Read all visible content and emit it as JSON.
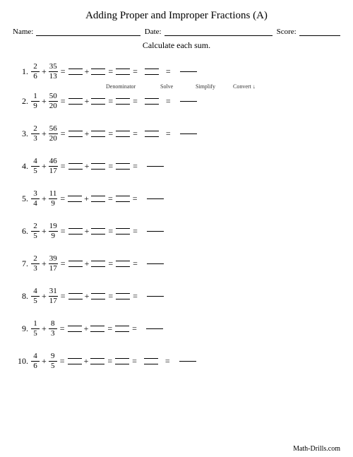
{
  "title": "Adding Proper and Improper Fractions (A)",
  "header": {
    "name_label": "Name:",
    "date_label": "Date:",
    "score_label": "Score:"
  },
  "instruction": "Calculate each sum.",
  "step_labels": {
    "denominator": "Denominator",
    "solve": "Solve",
    "simplify": "Simplify",
    "convert": "Convert ↓"
  },
  "problems": [
    {
      "num": "1.",
      "a_n": "2",
      "a_d": "6",
      "b_n": "35",
      "b_d": "13",
      "extra_steps": 2
    },
    {
      "num": "2.",
      "a_n": "1",
      "a_d": "9",
      "b_n": "50",
      "b_d": "20",
      "extra_steps": 2
    },
    {
      "num": "3.",
      "a_n": "2",
      "a_d": "3",
      "b_n": "56",
      "b_d": "20",
      "extra_steps": 2
    },
    {
      "num": "4.",
      "a_n": "4",
      "a_d": "5",
      "b_n": "46",
      "b_d": "17",
      "extra_steps": 1
    },
    {
      "num": "5.",
      "a_n": "3",
      "a_d": "4",
      "b_n": "11",
      "b_d": "9",
      "extra_steps": 1
    },
    {
      "num": "6.",
      "a_n": "2",
      "a_d": "5",
      "b_n": "19",
      "b_d": "9",
      "extra_steps": 1
    },
    {
      "num": "7.",
      "a_n": "2",
      "a_d": "3",
      "b_n": "39",
      "b_d": "17",
      "extra_steps": 1
    },
    {
      "num": "8.",
      "a_n": "4",
      "a_d": "5",
      "b_n": "31",
      "b_d": "17",
      "extra_steps": 1
    },
    {
      "num": "9.",
      "a_n": "1",
      "a_d": "5",
      "b_n": "8",
      "b_d": "3",
      "extra_steps": 1
    },
    {
      "num": "10.",
      "a_n": "4",
      "a_d": "6",
      "b_n": "9",
      "b_d": "5",
      "extra_steps": 2
    }
  ],
  "footer": "Math-Drills.com",
  "symbols": {
    "plus": "+",
    "equals": "="
  },
  "colors": {
    "text": "#000000",
    "background": "#ffffff"
  }
}
